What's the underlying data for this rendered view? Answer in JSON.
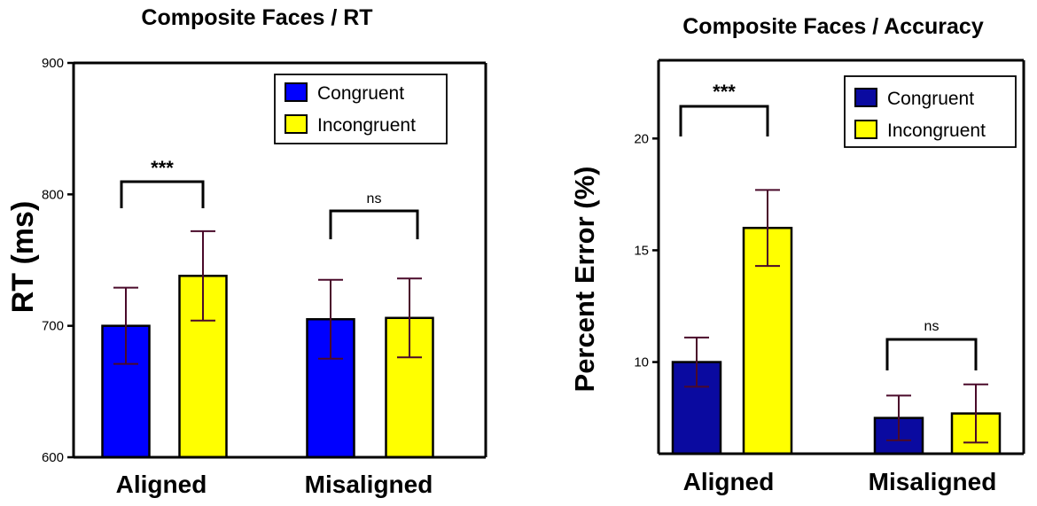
{
  "colors": {
    "congruent_left": "#0000ff",
    "congruent_right": "#0a0aa0",
    "incongruent": "#ffff00",
    "error_bar": "#4a0a2a",
    "axis": "#000000"
  },
  "chart_data": [
    {
      "type": "bar",
      "title": "Composite Faces / RT",
      "ylabel": "RT (ms)",
      "xlabel": "",
      "categories": [
        "Aligned",
        "Misaligned"
      ],
      "ylim": [
        600,
        900
      ],
      "yticks": [
        600,
        700,
        800,
        900
      ],
      "legend_position": "top-right",
      "series": [
        {
          "name": "Congruent",
          "values": [
            700,
            705
          ],
          "error": [
            29,
            30
          ]
        },
        {
          "name": "Incongruent",
          "values": [
            738,
            706
          ],
          "error": [
            34,
            30
          ]
        }
      ],
      "annotations": [
        {
          "category": "Aligned",
          "text": "***"
        },
        {
          "category": "Misaligned",
          "text": "ns"
        }
      ]
    },
    {
      "type": "bar",
      "title": "Composite Faces / Accuracy",
      "ylabel": "Percent Error (%)",
      "xlabel": "",
      "categories": [
        "Aligned",
        "Misaligned"
      ],
      "ylim": [
        5.9,
        23.5
      ],
      "yticks": [
        10,
        15,
        20
      ],
      "legend_position": "top-right",
      "series": [
        {
          "name": "Congruent",
          "values": [
            10.0,
            7.5
          ],
          "error": [
            1.1,
            1.0
          ]
        },
        {
          "name": "Incongruent",
          "values": [
            16.0,
            7.7
          ],
          "error": [
            1.7,
            1.3
          ]
        }
      ],
      "annotations": [
        {
          "category": "Aligned",
          "text": "***"
        },
        {
          "category": "Misaligned",
          "text": "ns"
        }
      ]
    }
  ]
}
